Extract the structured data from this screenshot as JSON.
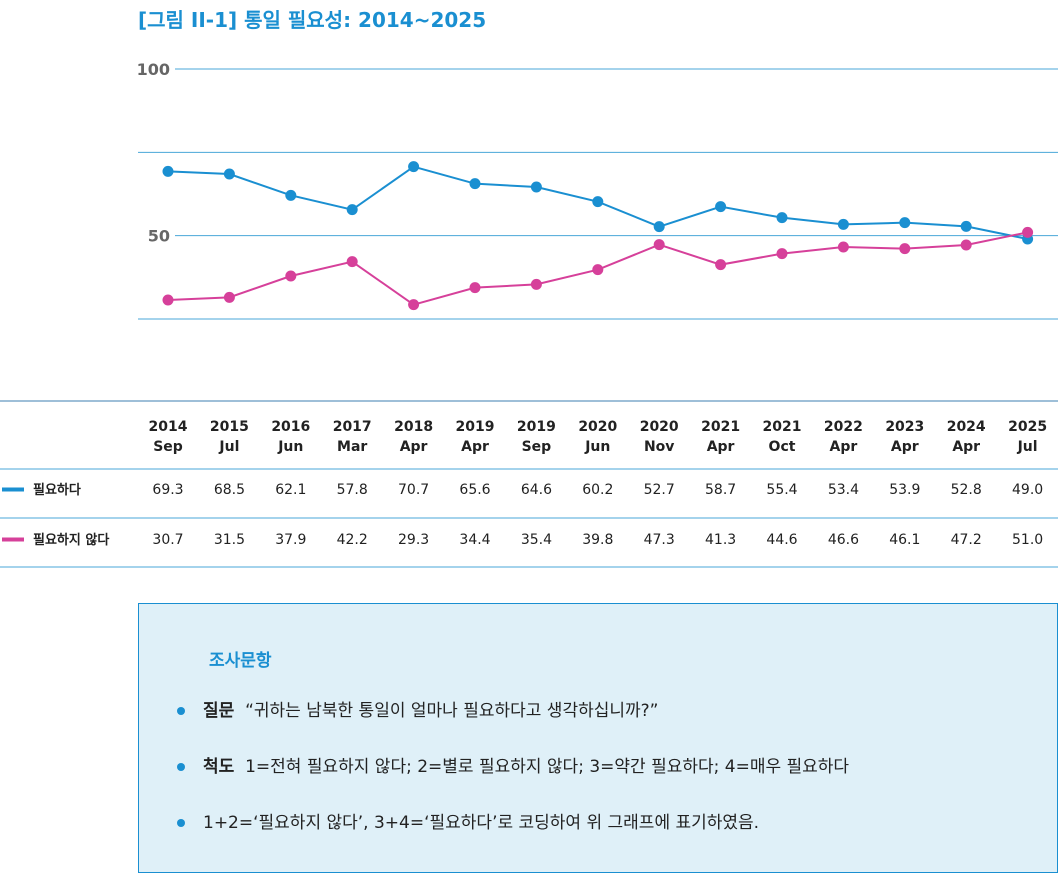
{
  "title": "[그림 II-1] 통일 필요성: 2014~2025",
  "chart_data": {
    "type": "line",
    "title": "[그림 II-1] 통일 필요성: 2014~2025",
    "categories": [
      [
        "2014",
        "Sep"
      ],
      [
        "2015",
        "Jul"
      ],
      [
        "2016",
        "Jun"
      ],
      [
        "2017",
        "Mar"
      ],
      [
        "2018",
        "Apr"
      ],
      [
        "2019",
        "Apr"
      ],
      [
        "2019",
        "Sep"
      ],
      [
        "2020",
        "Jun"
      ],
      [
        "2020",
        "Nov"
      ],
      [
        "2021",
        "Apr"
      ],
      [
        "2021",
        "Oct"
      ],
      [
        "2022",
        "Apr"
      ],
      [
        "2023",
        "Apr"
      ],
      [
        "2024",
        "Apr"
      ],
      [
        "2025",
        "Jul"
      ]
    ],
    "ylim": [
      25,
      100
    ],
    "yticks": [
      {
        "value": 100,
        "label": "100"
      },
      {
        "value": 75,
        "label": ""
      },
      {
        "value": 50,
        "label": "50"
      },
      {
        "value": 25,
        "label": ""
      }
    ],
    "series": [
      {
        "name": "필요하다",
        "color": "#1a8fd1",
        "values": [
          69.3,
          68.5,
          62.1,
          57.8,
          70.7,
          65.6,
          64.6,
          60.2,
          52.7,
          58.7,
          55.4,
          53.4,
          53.9,
          52.8,
          49.0
        ],
        "labels": [
          "69.3",
          "68.5",
          "62.1",
          "57.8",
          "70.7",
          "65.6",
          "64.6",
          "60.2",
          "52.7",
          "58.7",
          "55.4",
          "53.4",
          "53.9",
          "52.8",
          "49.0"
        ]
      },
      {
        "name": "필요하지 않다",
        "color": "#d6409a",
        "values": [
          30.7,
          31.5,
          37.9,
          42.2,
          29.3,
          34.4,
          35.4,
          39.8,
          47.3,
          41.3,
          44.6,
          46.6,
          46.1,
          47.2,
          51.0
        ],
        "labels": [
          "30.7",
          "31.5",
          "37.9",
          "42.2",
          "29.3",
          "34.4",
          "35.4",
          "39.8",
          "47.3",
          "41.3",
          "44.6",
          "46.6",
          "46.1",
          "47.2",
          "51.0"
        ]
      }
    ],
    "grid": true,
    "legend": "table-below"
  },
  "note": {
    "heading": "조사문항",
    "q_label": "질문",
    "q_text": "“귀하는 남북한 통일이 얼마나 필요하다고 생각하십니까?”",
    "s_label": "척도",
    "s_text": "1=전혀 필요하지 않다; 2=별로 필요하지 않다; 3=약간 필요하다; 4=매우 필요하다",
    "coding": "1+2=‘필요하지 않다’, 3+4=‘필요하다’로 코딩하여 위 그래프에 표기하였음."
  }
}
